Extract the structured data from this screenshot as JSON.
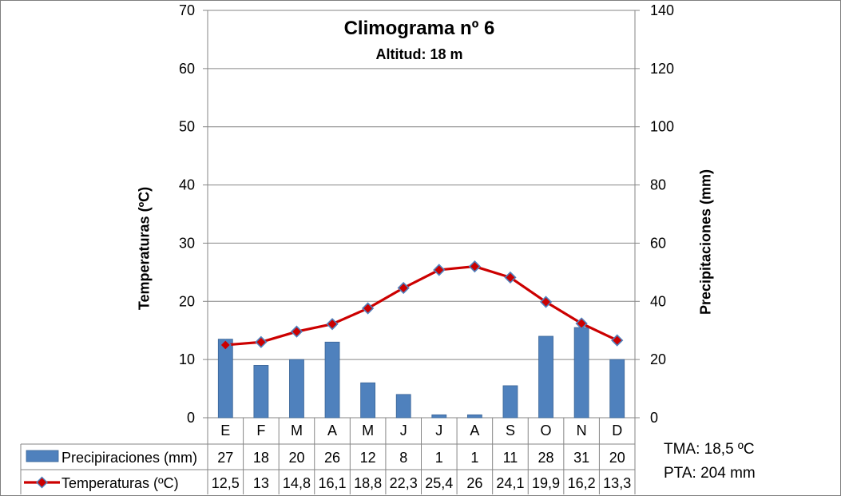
{
  "chart_data": {
    "type": "bar+line",
    "title": "Climograma nº 6",
    "subtitle": "Altitud: 18 m",
    "categories": [
      "E",
      "F",
      "M",
      "A",
      "M",
      "J",
      "J",
      "A",
      "S",
      "O",
      "N",
      "D"
    ],
    "series": [
      {
        "name": "Precipiraciones (mm)",
        "type": "bar",
        "axis": "right",
        "color": "#4f81bd",
        "values": [
          27,
          18,
          20,
          26,
          12,
          8,
          1,
          1,
          11,
          28,
          31,
          20
        ]
      },
      {
        "name": "Temperaturas (ºC)",
        "type": "line",
        "axis": "left",
        "color": "#cc0000",
        "marker_color": "#4f81bd",
        "values": [
          12.5,
          13,
          14.8,
          16.1,
          18.8,
          22.3,
          25.4,
          26,
          24.1,
          19.9,
          16.2,
          13.3
        ]
      }
    ],
    "table_values": {
      "precip": [
        "27",
        "18",
        "20",
        "26",
        "12",
        "8",
        "1",
        "1",
        "11",
        "28",
        "31",
        "20"
      ],
      "temp": [
        "12,5",
        "13",
        "14,8",
        "16,1",
        "18,8",
        "22,3",
        "25,4",
        "26",
        "24,1",
        "19,9",
        "16,2",
        "13,3"
      ]
    },
    "ylabel_left": "Temperaturas (ºC)",
    "ylabel_right": "Precipitaciones (mm)",
    "ylim_left": [
      0,
      70
    ],
    "ylim_right": [
      0,
      140
    ],
    "yticks_left": [
      "0",
      "10",
      "20",
      "30",
      "40",
      "50",
      "60",
      "70"
    ],
    "yticks_right": [
      "0",
      "20",
      "40",
      "60",
      "80",
      "100",
      "120",
      "140"
    ],
    "grid": true,
    "legend": "data table",
    "summary": {
      "tma": "TMA: 18,5 ºC",
      "pta": "PTA: 204 mm"
    }
  }
}
